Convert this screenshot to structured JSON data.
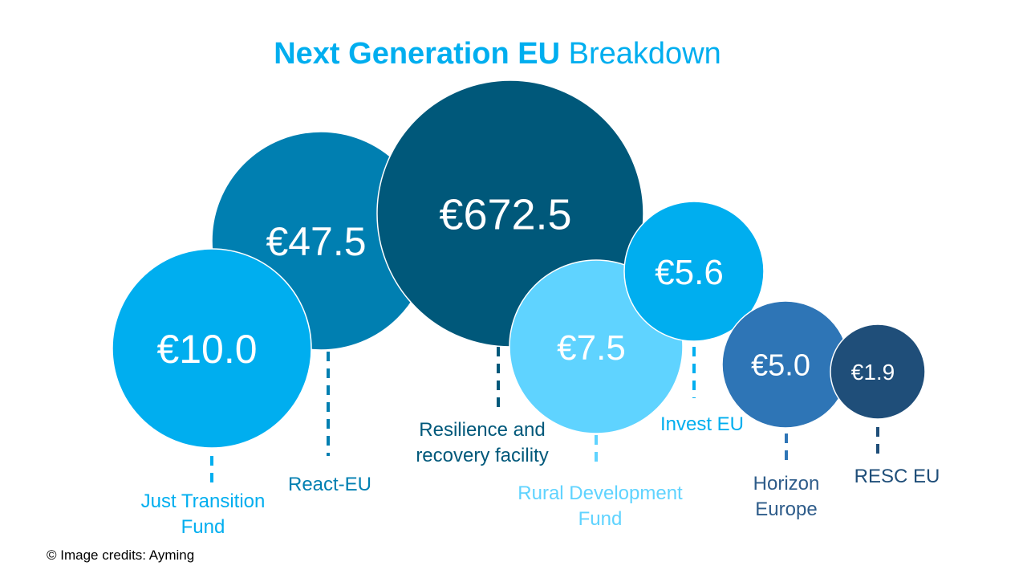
{
  "title": {
    "bold": "Next Generation EU",
    "light": "Breakdown"
  },
  "credit": "© Image credits: Ayming",
  "chart_data": {
    "type": "bubble",
    "title": "Next Generation EU Breakdown",
    "value_prefix": "€",
    "items": [
      {
        "name": "Resilience and recovery facility",
        "label_lines": [
          "Resilience and",
          "recovery facility"
        ],
        "value": 672.5,
        "value_label": "€672.5",
        "color": "#00587A",
        "label_color": "#00587A"
      },
      {
        "name": "React-EU",
        "label_lines": [
          "React-EU"
        ],
        "value": 47.5,
        "value_label": "€47.5",
        "color": "#007FB1",
        "label_color": "#007FB1"
      },
      {
        "name": "Just Transition Fund",
        "label_lines": [
          "Just Transition",
          "Fund"
        ],
        "value": 10.0,
        "value_label": "€10.0",
        "color": "#00AEEF",
        "label_color": "#00AEEF"
      },
      {
        "name": "Rural Development Fund",
        "label_lines": [
          "Rural Development",
          "Fund"
        ],
        "value": 7.5,
        "value_label": "€7.5",
        "color": "#5FD3FF",
        "label_color": "#5FD3FF"
      },
      {
        "name": "Invest EU",
        "label_lines": [
          "Invest EU"
        ],
        "value": 5.6,
        "value_label": "€5.6",
        "color": "#00AEEF",
        "label_color": "#00AEEF"
      },
      {
        "name": "Horizon Europe",
        "label_lines": [
          "Horizon",
          "Europe"
        ],
        "value": 5.0,
        "value_label": "€5.0",
        "color": "#2E75B6",
        "label_color": "#2E5C8A"
      },
      {
        "name": "RESC EU",
        "label_lines": [
          "RESC EU"
        ],
        "value": 1.9,
        "value_label": "€1.9",
        "color": "#1F4E79",
        "label_color": "#1F4E79"
      }
    ]
  }
}
